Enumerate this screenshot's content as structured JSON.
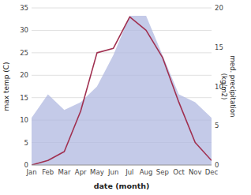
{
  "chart_data": {
    "type": "line",
    "xlabel": "date (month)",
    "ylabel": "max temp (C)",
    "y2label": "med. precipitation\n(kg/m2)",
    "categories": [
      "Jan",
      "Feb",
      "Mar",
      "Apr",
      "May",
      "Jun",
      "Jul",
      "Aug",
      "Sep",
      "Oct",
      "Nov",
      "Dec"
    ],
    "series": [
      {
        "type": "area",
        "axis": "y2",
        "color": "#b0b8e0",
        "values": [
          6,
          9,
          7,
          8,
          10,
          14,
          19,
          19,
          14,
          9,
          8,
          6
        ]
      },
      {
        "type": "line",
        "color": "#a03050",
        "values": [
          0,
          1,
          3,
          12,
          25,
          26,
          33,
          30,
          24,
          14,
          5,
          1
        ]
      }
    ],
    "ylim": [
      0,
      35
    ],
    "yticks": [
      0,
      5,
      10,
      15,
      20,
      25,
      30,
      35
    ],
    "y2lim": [
      0,
      20
    ],
    "y2ticks": [
      0,
      5,
      10,
      15,
      20
    ],
    "grid": true
  }
}
